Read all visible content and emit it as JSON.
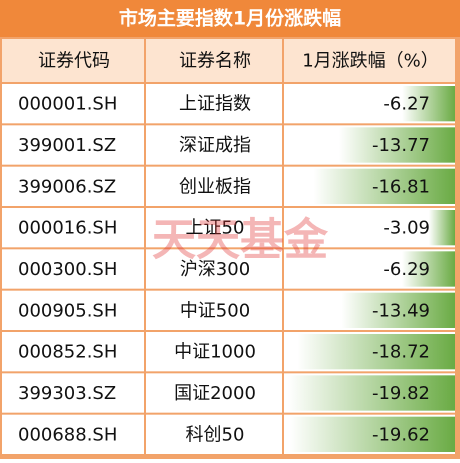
{
  "header": {
    "title": "市场主要指数1月份涨跌幅"
  },
  "table": {
    "columns": [
      "证券代码",
      "证券名称",
      "1月涨跌幅（%）"
    ],
    "rows": [
      [
        "000001.SH",
        "上证指数",
        -6.27
      ],
      [
        "399001.SZ",
        "深证成指",
        -13.77
      ],
      [
        "399006.SZ",
        "创业板指",
        -16.81
      ],
      [
        "000016.SH",
        "上证50",
        -3.09
      ],
      [
        "000300.SH",
        "沪深300",
        -6.29
      ],
      [
        "000905.SH",
        "中证500",
        -13.49
      ],
      [
        "000852.SH",
        "中证1000",
        -18.72
      ],
      [
        "399303.SZ",
        "国证2000",
        -19.82
      ],
      [
        "000688.SH",
        "科创50",
        -19.62
      ]
    ]
  },
  "watermark": "天天基金"
}
